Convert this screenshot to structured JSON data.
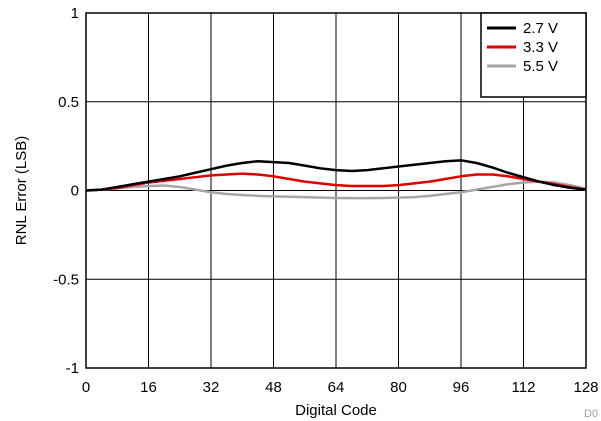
{
  "chart_data": {
    "type": "line",
    "title": "",
    "xlabel": "Digital Code",
    "ylabel": "RNL Error (LSB)",
    "xlim": [
      0,
      128
    ],
    "ylim": [
      -1,
      1
    ],
    "x_ticks": [
      0,
      16,
      32,
      48,
      64,
      80,
      96,
      112,
      128
    ],
    "y_ticks": [
      1,
      0.5,
      0,
      -0.5,
      -1
    ],
    "y_tick_labels": [
      "1",
      "0.5",
      "0",
      "-0.5",
      "-1"
    ],
    "grid": true,
    "legend_position": "top-right",
    "figure_id": "D0",
    "x": [
      0,
      4,
      8,
      12,
      16,
      20,
      24,
      28,
      32,
      36,
      40,
      44,
      48,
      52,
      56,
      60,
      64,
      68,
      72,
      76,
      80,
      84,
      88,
      92,
      96,
      100,
      104,
      108,
      112,
      116,
      120,
      124,
      128
    ],
    "series": [
      {
        "name": "2.7 V",
        "color": "#000000",
        "values": [
          0,
          0.005,
          0.02,
          0.035,
          0.05,
          0.065,
          0.08,
          0.1,
          0.12,
          0.14,
          0.155,
          0.165,
          0.16,
          0.155,
          0.14,
          0.125,
          0.115,
          0.11,
          0.115,
          0.125,
          0.135,
          0.145,
          0.155,
          0.165,
          0.17,
          0.155,
          0.13,
          0.1,
          0.075,
          0.05,
          0.03,
          0.015,
          0.005
        ]
      },
      {
        "name": "3.3 V",
        "color": "#e00000",
        "values": [
          0,
          0.005,
          0.015,
          0.03,
          0.045,
          0.055,
          0.065,
          0.075,
          0.085,
          0.09,
          0.095,
          0.09,
          0.08,
          0.065,
          0.05,
          0.04,
          0.03,
          0.025,
          0.025,
          0.025,
          0.03,
          0.04,
          0.05,
          0.065,
          0.08,
          0.09,
          0.09,
          0.08,
          0.065,
          0.05,
          0.035,
          0.02,
          0.005
        ]
      },
      {
        "name": "5.5 V",
        "color": "#a6a6a6",
        "values": [
          0,
          0.005,
          0.012,
          0.02,
          0.025,
          0.028,
          0.02,
          0.005,
          -0.01,
          -0.02,
          -0.025,
          -0.03,
          -0.033,
          -0.035,
          -0.037,
          -0.04,
          -0.042,
          -0.043,
          -0.043,
          -0.042,
          -0.04,
          -0.037,
          -0.03,
          -0.02,
          -0.01,
          0.005,
          0.02,
          0.035,
          0.045,
          0.05,
          0.045,
          0.03,
          0.01
        ]
      }
    ]
  }
}
